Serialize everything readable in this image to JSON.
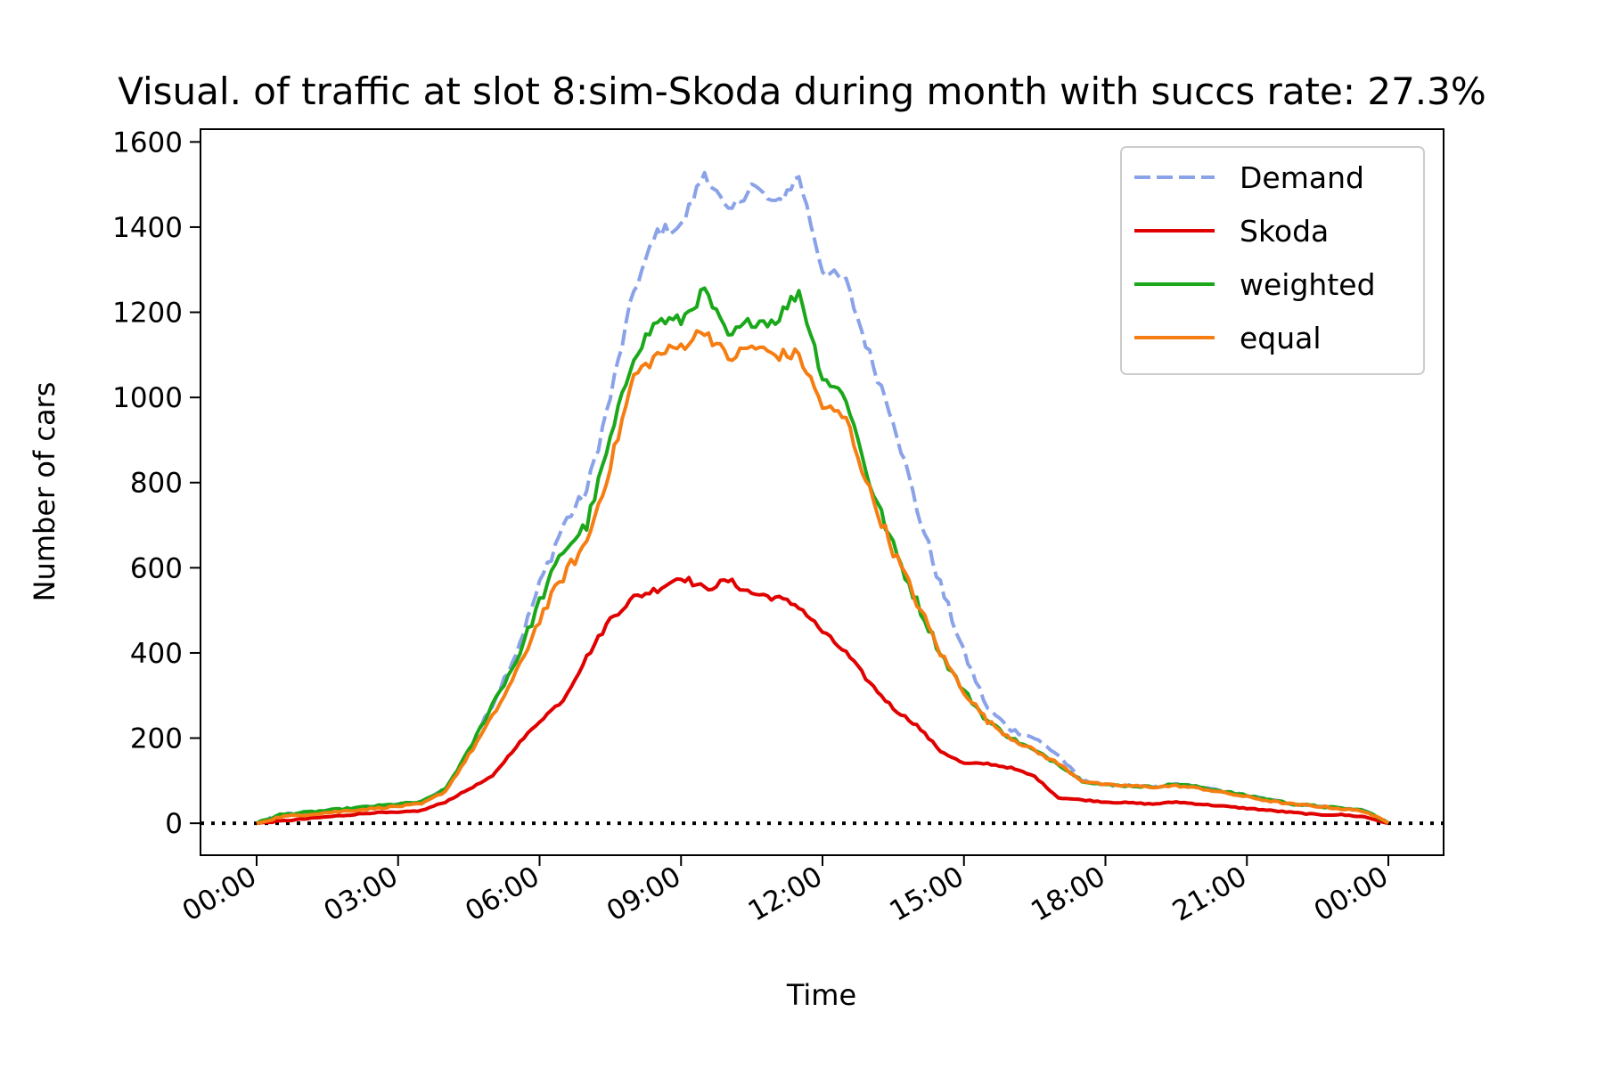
{
  "chart_data": {
    "type": "line",
    "title": "Visual. of traffic at slot 8:sim-Skoda during month with succs rate: 27.3%",
    "xlabel": "Time",
    "ylabel": "Number of cars",
    "xlim": [
      "23:00",
      "01:00"
    ],
    "ylim": [
      -75,
      1630
    ],
    "x_tick_labels": [
      "00:00",
      "03:00",
      "06:00",
      "09:00",
      "12:00",
      "15:00",
      "18:00",
      "21:00",
      "00:00"
    ],
    "y_tick_labels": [
      "0",
      "200",
      "400",
      "600",
      "800",
      "1000",
      "1200",
      "1400",
      "1600"
    ],
    "grid": false,
    "legend_position": "top-right",
    "reference_line": {
      "y": 0,
      "style": "dotted",
      "color": "#000000"
    },
    "x": [
      "00:00",
      "00:30",
      "01:00",
      "01:30",
      "02:00",
      "02:30",
      "03:00",
      "03:30",
      "04:00",
      "04:30",
      "05:00",
      "05:30",
      "06:00",
      "06:30",
      "07:00",
      "07:30",
      "08:00",
      "08:30",
      "09:00",
      "09:30",
      "10:00",
      "10:30",
      "11:00",
      "11:30",
      "12:00",
      "12:30",
      "13:00",
      "13:30",
      "14:00",
      "14:30",
      "15:00",
      "15:30",
      "16:00",
      "16:30",
      "17:00",
      "17:30",
      "18:00",
      "18:30",
      "19:00",
      "19:30",
      "20:00",
      "20:30",
      "21:00",
      "21:30",
      "22:00",
      "22:30",
      "23:00",
      "23:30",
      "24:00"
    ],
    "series": [
      {
        "name": "Demand",
        "color": "#8aa2e8",
        "dash": "dashed",
        "values": [
          0,
          20,
          25,
          30,
          35,
          40,
          45,
          50,
          80,
          170,
          280,
          400,
          560,
          700,
          780,
          1000,
          1250,
          1390,
          1400,
          1530,
          1430,
          1500,
          1450,
          1520,
          1300,
          1270,
          1100,
          950,
          740,
          560,
          400,
          270,
          220,
          200,
          160,
          100,
          90,
          88,
          85,
          92,
          85,
          75,
          65,
          55,
          45,
          40,
          35,
          30,
          0
        ]
      },
      {
        "name": "Skoda",
        "color": "#e00000",
        "dash": "solid",
        "values": [
          0,
          5,
          10,
          15,
          20,
          25,
          25,
          30,
          50,
          80,
          110,
          180,
          240,
          290,
          390,
          480,
          530,
          550,
          580,
          550,
          570,
          540,
          530,
          510,
          450,
          400,
          330,
          270,
          230,
          170,
          140,
          140,
          130,
          110,
          60,
          55,
          50,
          48,
          45,
          50,
          45,
          40,
          35,
          30,
          25,
          20,
          20,
          15,
          0
        ]
      },
      {
        "name": "weighted",
        "color": "#1aa81a",
        "dash": "solid",
        "values": [
          0,
          20,
          25,
          30,
          35,
          40,
          45,
          50,
          80,
          170,
          280,
          380,
          520,
          640,
          700,
          900,
          1100,
          1180,
          1180,
          1250,
          1140,
          1180,
          1180,
          1250,
          1050,
          1000,
          800,
          650,
          520,
          400,
          310,
          240,
          200,
          170,
          140,
          100,
          90,
          88,
          85,
          92,
          85,
          75,
          65,
          55,
          45,
          40,
          35,
          30,
          0
        ]
      },
      {
        "name": "equal",
        "color": "#f57d12",
        "dash": "solid",
        "values": [
          0,
          15,
          20,
          25,
          30,
          35,
          40,
          45,
          75,
          160,
          250,
          350,
          480,
          580,
          660,
          840,
          1050,
          1100,
          1120,
          1160,
          1090,
          1120,
          1100,
          1100,
          980,
          950,
          780,
          640,
          520,
          400,
          310,
          240,
          200,
          170,
          140,
          100,
          90,
          88,
          85,
          88,
          82,
          72,
          62,
          52,
          44,
          40,
          34,
          28,
          0
        ]
      }
    ]
  }
}
